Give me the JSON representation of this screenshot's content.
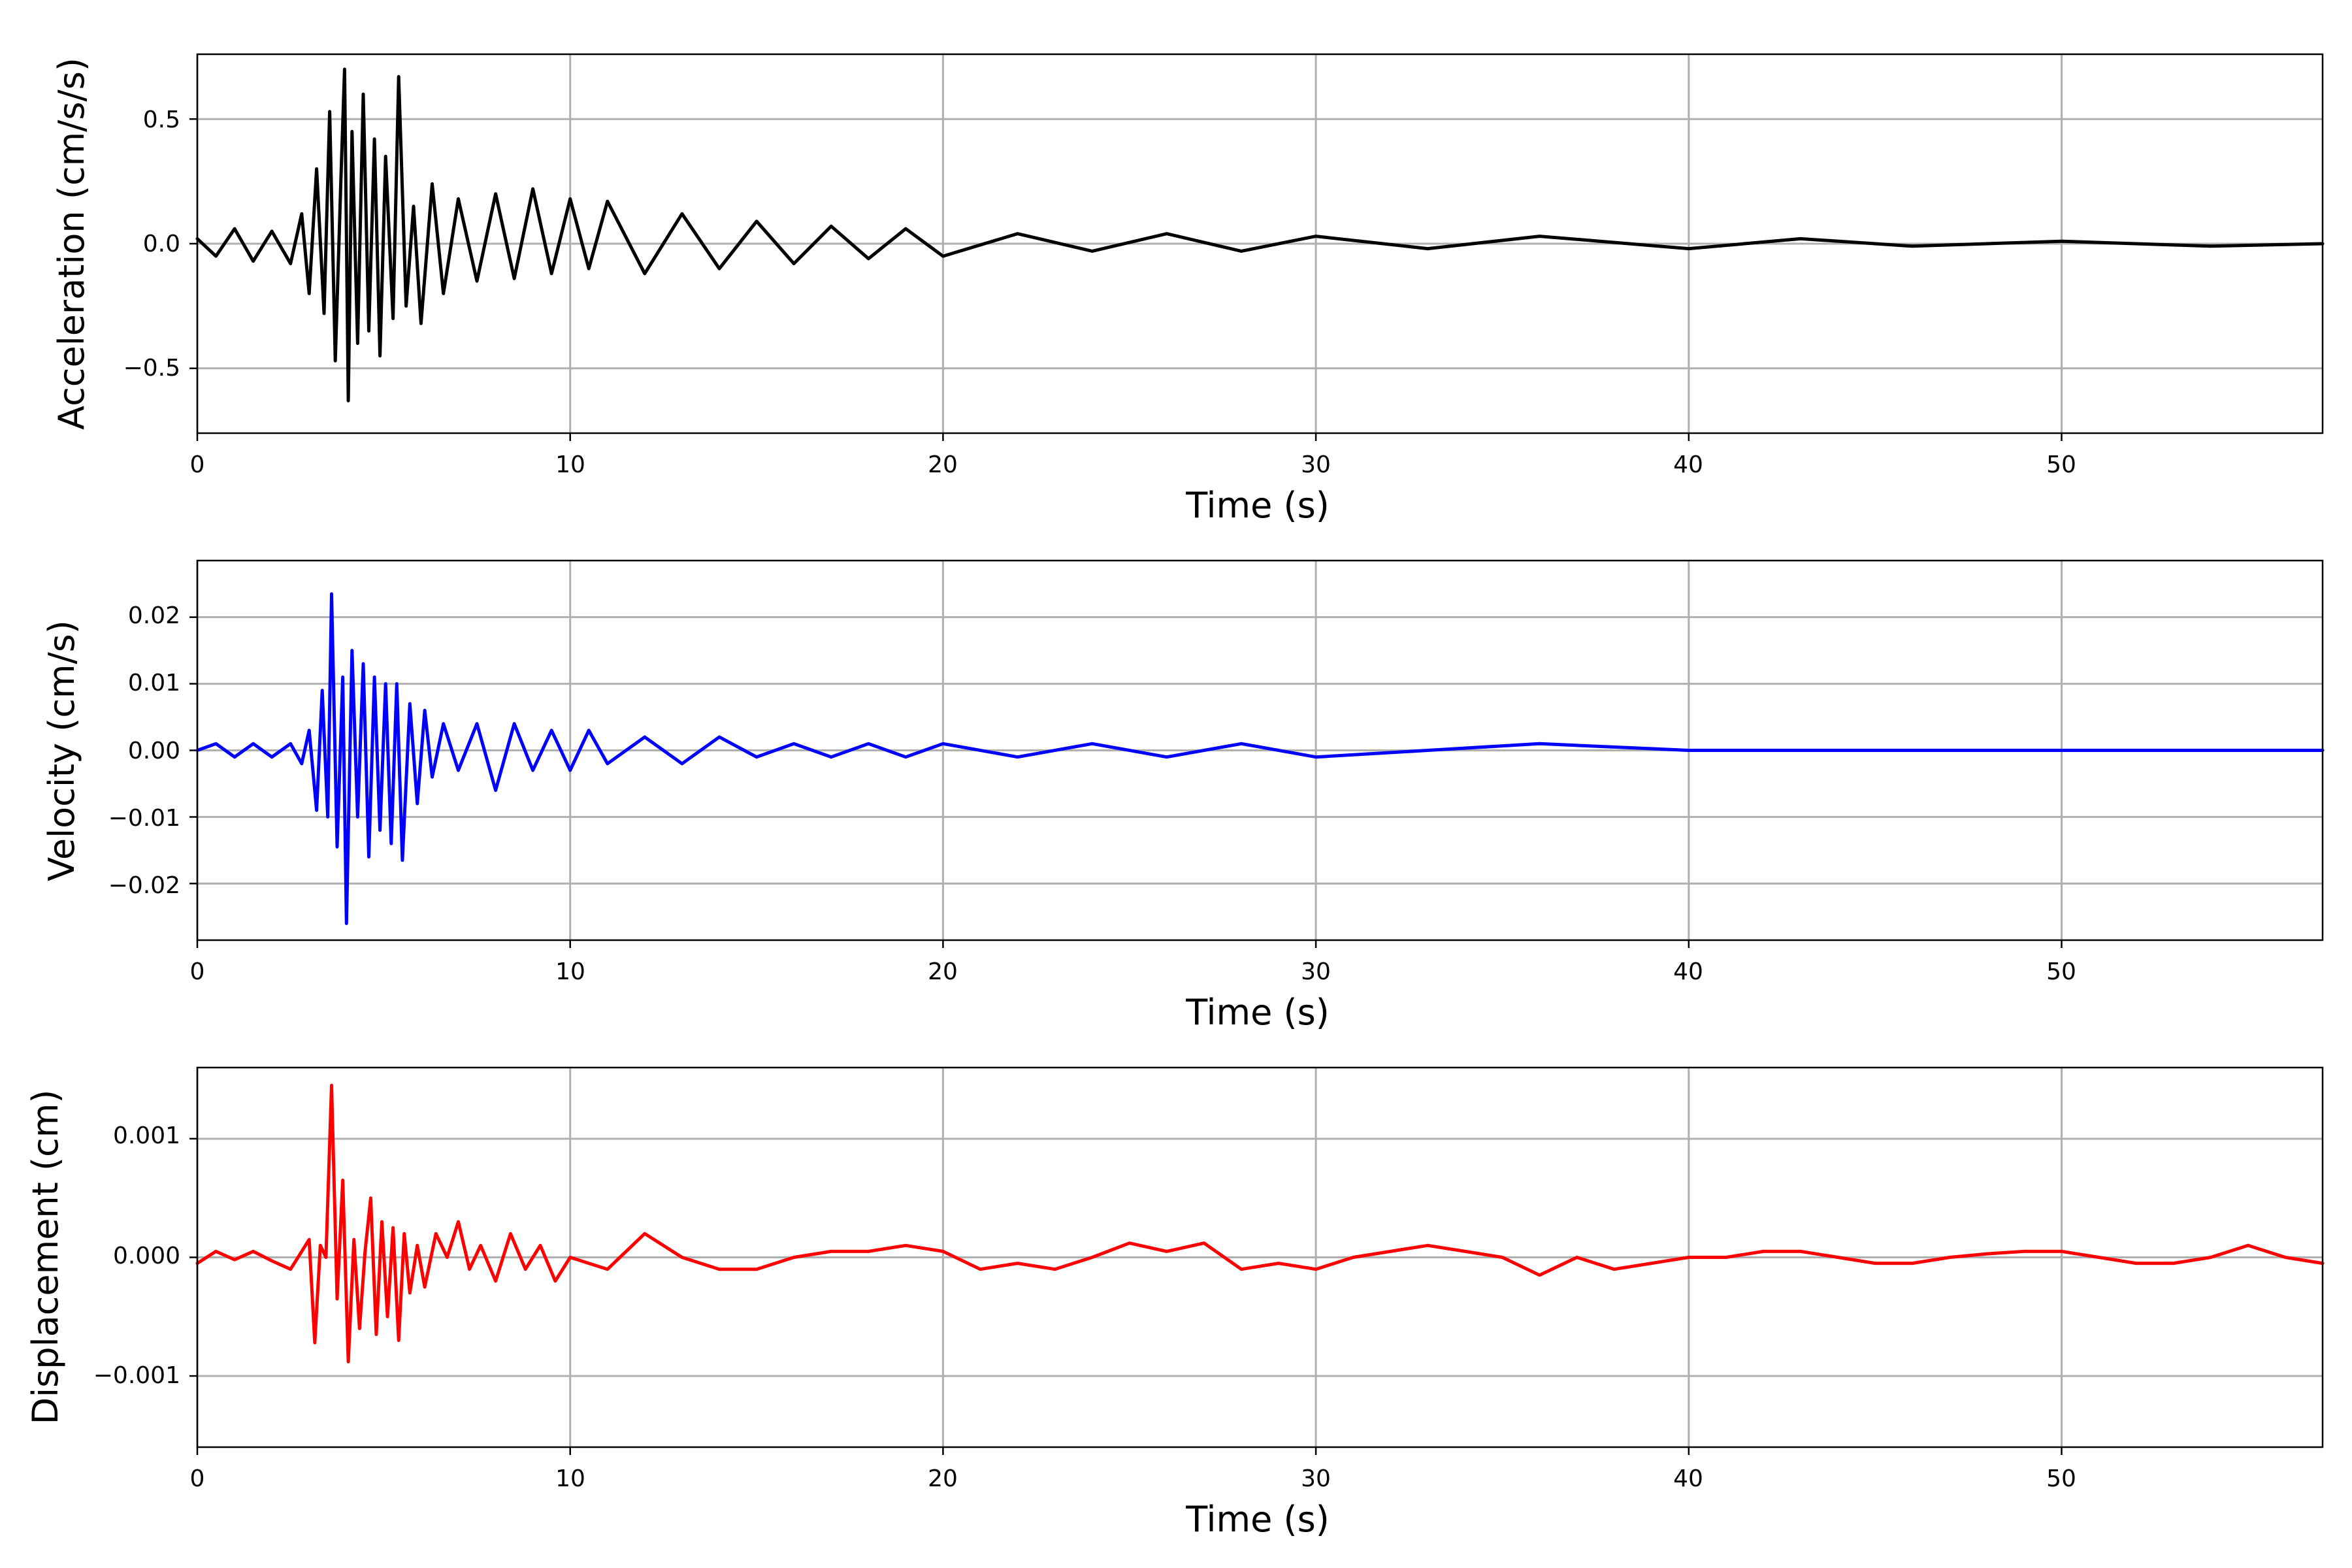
{
  "chart_data": [
    {
      "type": "line",
      "xlabel": "Time (s)",
      "ylabel": "Acceleration (cm/s/s)",
      "xlim": [
        0,
        57
      ],
      "ylim": [
        -0.76,
        0.76
      ],
      "xticks": [
        0,
        10,
        20,
        30,
        40,
        50
      ],
      "xtick_labels": [
        "0",
        "10",
        "20",
        "30",
        "40",
        "50"
      ],
      "yticks": [
        0.5,
        0.0,
        -0.5
      ],
      "ytick_labels": [
        "0.5",
        "0.0",
        "−0.5"
      ],
      "grid": true,
      "color": "#000000",
      "series": [
        {
          "x": [
            0,
            0.5,
            1,
            1.5,
            2,
            2.5,
            2.8,
            3.0,
            3.2,
            3.4,
            3.55,
            3.7,
            3.85,
            3.95,
            4.05,
            4.15,
            4.3,
            4.45,
            4.6,
            4.75,
            4.9,
            5.05,
            5.25,
            5.4,
            5.6,
            5.8,
            6.0,
            6.3,
            6.6,
            7.0,
            7.5,
            8.0,
            8.5,
            9.0,
            9.5,
            10.0,
            10.5,
            11.0,
            12,
            13,
            14,
            15,
            16,
            17,
            18,
            19,
            20,
            22,
            24,
            26,
            28,
            30,
            33,
            36,
            40,
            43,
            46,
            50,
            54,
            57
          ],
          "y": [
            0.02,
            -0.05,
            0.06,
            -0.07,
            0.05,
            -0.08,
            0.12,
            -0.2,
            0.3,
            -0.28,
            0.53,
            -0.47,
            0.25,
            0.7,
            -0.63,
            0.45,
            -0.4,
            0.6,
            -0.35,
            0.42,
            -0.45,
            0.35,
            -0.3,
            0.67,
            -0.25,
            0.15,
            -0.32,
            0.24,
            -0.2,
            0.18,
            -0.15,
            0.2,
            -0.14,
            0.22,
            -0.12,
            0.18,
            -0.1,
            0.17,
            -0.12,
            0.12,
            -0.1,
            0.09,
            -0.08,
            0.07,
            -0.06,
            0.06,
            -0.05,
            0.04,
            -0.03,
            0.04,
            -0.03,
            0.03,
            -0.02,
            0.03,
            -0.02,
            0.02,
            -0.01,
            0.01,
            -0.01,
            0.0
          ]
        }
      ]
    },
    {
      "type": "line",
      "xlabel": "Time (s)",
      "ylabel": "Velocity (cm/s)",
      "xlim": [
        0,
        57
      ],
      "ylim": [
        -0.0285,
        0.0285
      ],
      "xticks": [
        0,
        10,
        20,
        30,
        40,
        50
      ],
      "xtick_labels": [
        "0",
        "10",
        "20",
        "30",
        "40",
        "50"
      ],
      "yticks": [
        0.02,
        0.01,
        0.0,
        -0.01,
        -0.02
      ],
      "ytick_labels": [
        "0.02",
        "0.01",
        "0.00",
        "−0.01",
        "−0.02"
      ],
      "grid": true,
      "color": "#0000ff",
      "series": [
        {
          "x": [
            0,
            0.5,
            1,
            1.5,
            2,
            2.5,
            2.8,
            3.0,
            3.2,
            3.35,
            3.5,
            3.6,
            3.75,
            3.9,
            4.0,
            4.15,
            4.3,
            4.45,
            4.6,
            4.75,
            4.9,
            5.05,
            5.2,
            5.35,
            5.5,
            5.7,
            5.9,
            6.1,
            6.3,
            6.6,
            7.0,
            7.5,
            8.0,
            8.5,
            9.0,
            9.5,
            10.0,
            10.5,
            11,
            12,
            13,
            14,
            15,
            16,
            17,
            18,
            19,
            20,
            22,
            24,
            26,
            28,
            30,
            33,
            36,
            40,
            43,
            46,
            50,
            54,
            57
          ],
          "y": [
            0.0,
            0.001,
            -0.001,
            0.001,
            -0.001,
            0.001,
            -0.002,
            0.003,
            -0.009,
            0.009,
            -0.01,
            0.0235,
            -0.0145,
            0.011,
            -0.026,
            0.015,
            -0.01,
            0.013,
            -0.016,
            0.011,
            -0.012,
            0.01,
            -0.014,
            0.01,
            -0.0165,
            0.007,
            -0.008,
            0.006,
            -0.004,
            0.004,
            -0.003,
            0.004,
            -0.006,
            0.004,
            -0.003,
            0.003,
            -0.003,
            0.003,
            -0.002,
            0.002,
            -0.002,
            0.002,
            -0.001,
            0.001,
            -0.001,
            0.001,
            -0.001,
            0.001,
            -0.001,
            0.001,
            -0.001,
            0.001,
            -0.001,
            0.0,
            0.001,
            0.0,
            0.0,
            0.0,
            0.0,
            0.0,
            0.0
          ]
        }
      ]
    },
    {
      "type": "line",
      "xlabel": "Time (s)",
      "ylabel": "Displacement (cm)",
      "xlim": [
        0,
        57
      ],
      "ylim": [
        -0.0016,
        0.0016
      ],
      "xticks": [
        0,
        10,
        20,
        30,
        40,
        50
      ],
      "xtick_labels": [
        "0",
        "10",
        "20",
        "30",
        "40",
        "50"
      ],
      "yticks": [
        0.001,
        0.0,
        -0.001
      ],
      "ytick_labels": [
        "0.001",
        "0.000",
        "−0.001"
      ],
      "grid": true,
      "color": "#ff0000",
      "series": [
        {
          "x": [
            0,
            0.5,
            1,
            1.5,
            2,
            2.5,
            2.8,
            3.0,
            3.15,
            3.3,
            3.45,
            3.6,
            3.75,
            3.9,
            4.05,
            4.2,
            4.35,
            4.5,
            4.65,
            4.8,
            4.95,
            5.1,
            5.25,
            5.4,
            5.55,
            5.7,
            5.9,
            6.1,
            6.4,
            6.7,
            7.0,
            7.3,
            7.6,
            8.0,
            8.4,
            8.8,
            9.2,
            9.6,
            10,
            11,
            12,
            13,
            14,
            15,
            16,
            17,
            18,
            19,
            20,
            21,
            22,
            23,
            24,
            25,
            26,
            27,
            28,
            29,
            30,
            31,
            32,
            33,
            34,
            35,
            36,
            37,
            38,
            39,
            40,
            41,
            42,
            43,
            44,
            45,
            46,
            47,
            48,
            49,
            50,
            51,
            52,
            53,
            54,
            55,
            56,
            57
          ],
          "y": [
            -5e-05,
            5e-05,
            -2e-05,
            5e-05,
            -3e-05,
            -0.0001,
            5e-05,
            0.00015,
            -0.00072,
            0.0001,
            0.0,
            0.00145,
            -0.00035,
            0.00065,
            -0.00088,
            0.00015,
            -0.0006,
            5e-05,
            0.0005,
            -0.00065,
            0.0003,
            -0.0005,
            0.00025,
            -0.0007,
            0.0002,
            -0.0003,
            0.0001,
            -0.00025,
            0.0002,
            0.0,
            0.0003,
            -0.0001,
            0.0001,
            -0.0002,
            0.0002,
            -0.0001,
            0.0001,
            -0.0002,
            0.0,
            -0.0001,
            0.0002,
            0.0,
            -0.0001,
            -0.0001,
            0.0,
            5e-05,
            5e-05,
            0.0001,
            5e-05,
            -0.0001,
            -5e-05,
            -0.0001,
            0.0,
            0.00012,
            5e-05,
            0.00012,
            -0.0001,
            -5e-05,
            -0.0001,
            0.0,
            5e-05,
            0.0001,
            5e-05,
            0.0,
            -0.00015,
            0.0,
            -0.0001,
            -5e-05,
            0.0,
            0.0,
            5e-05,
            5e-05,
            0.0,
            -5e-05,
            -5e-05,
            0.0,
            3e-05,
            5e-05,
            5e-05,
            0.0,
            -5e-05,
            -5e-05,
            0.0,
            0.0001,
            0.0,
            -5e-05
          ]
        }
      ]
    }
  ]
}
